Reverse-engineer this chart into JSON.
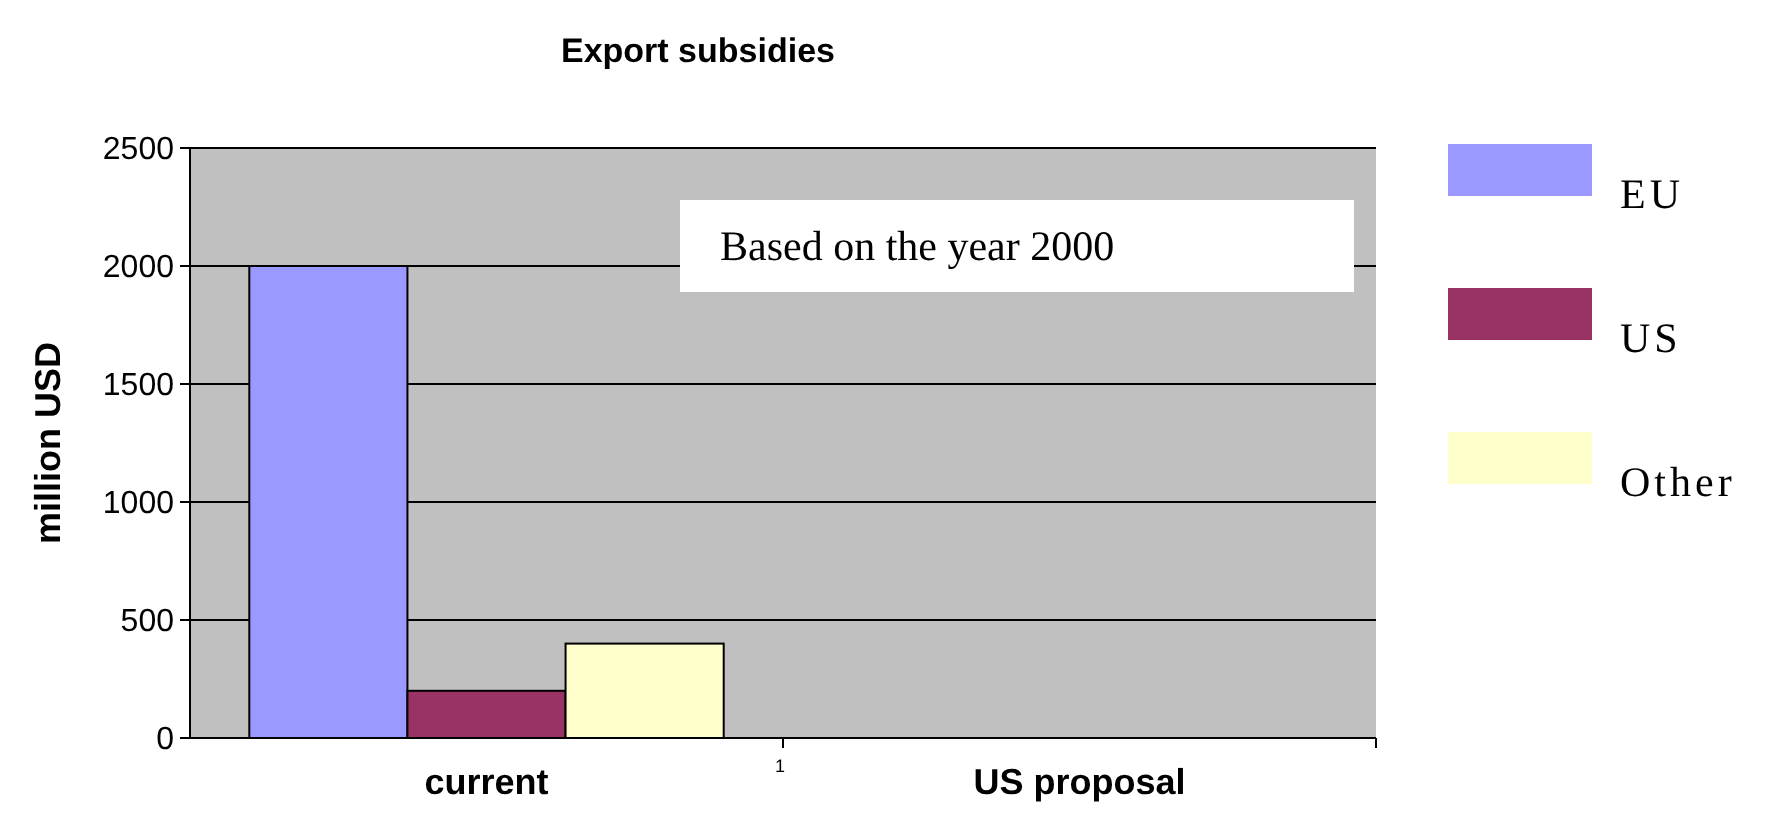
{
  "chart_data": {
    "type": "bar",
    "title": "Export subsidies",
    "ylabel": "million USD",
    "categories": [
      "current",
      "US proposal"
    ],
    "series": [
      {
        "name": "EU",
        "color": "#9999ff",
        "values": [
          2000,
          0
        ]
      },
      {
        "name": "US",
        "color": "#993366",
        "values": [
          200,
          0
        ]
      },
      {
        "name": "Other",
        "color": "#ffffcc",
        "values": [
          400,
          0
        ]
      }
    ],
    "ylim": [
      0,
      2500
    ],
    "yticks": [
      0,
      500,
      1000,
      1500,
      2000,
      2500
    ],
    "grid": "y",
    "legend": "right",
    "annotations": [
      "Based on the year 2000",
      "1"
    ]
  }
}
